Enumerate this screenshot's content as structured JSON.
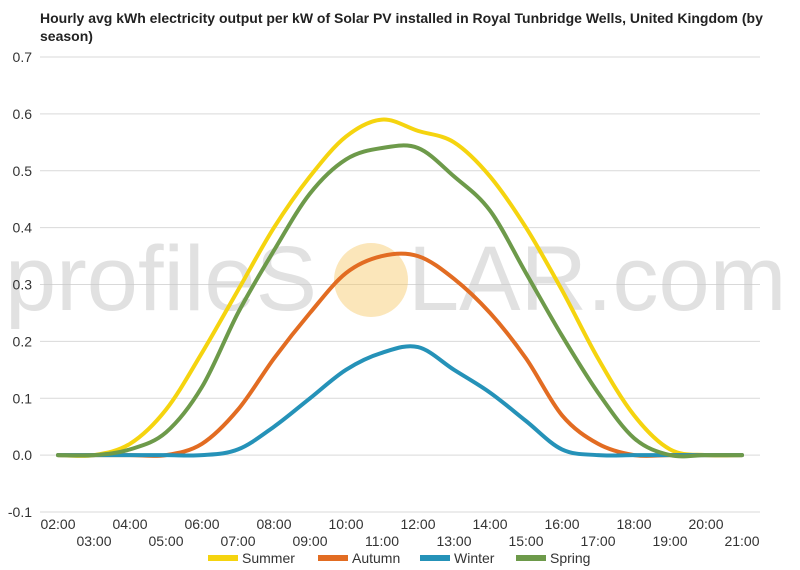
{
  "chart_data": {
    "type": "line",
    "title": "Hourly avg kWh electricity output per kW of Solar PV installed in Royal Tunbridge Wells, United Kingdom (by season)",
    "xlabel": "",
    "ylabel": "",
    "x_ticks_upper": [
      "02:00",
      "04:00",
      "06:00",
      "08:00",
      "10:00",
      "12:00",
      "14:00",
      "16:00",
      "18:00",
      "20:00"
    ],
    "x_ticks_lower": [
      "03:00",
      "05:00",
      "07:00",
      "09:00",
      "11:00",
      "13:00",
      "15:00",
      "17:00",
      "19:00",
      "21:00"
    ],
    "ylim": [
      -0.1,
      0.7
    ],
    "yticks": [
      "-0.1",
      "0.0",
      "0.1",
      "0.2",
      "0.3",
      "0.4",
      "0.5",
      "0.6",
      "0.7"
    ],
    "grid": true,
    "legend_position": "bottom",
    "x": [
      "02:00",
      "03:00",
      "04:00",
      "05:00",
      "06:00",
      "07:00",
      "08:00",
      "09:00",
      "10:00",
      "11:00",
      "12:00",
      "13:00",
      "14:00",
      "15:00",
      "16:00",
      "17:00",
      "18:00",
      "19:00",
      "20:00",
      "21:00"
    ],
    "series": [
      {
        "name": "Summer",
        "color": "#f5d40f",
        "values": [
          0.0,
          0.0,
          0.02,
          0.08,
          0.18,
          0.29,
          0.4,
          0.49,
          0.56,
          0.59,
          0.57,
          0.55,
          0.49,
          0.4,
          0.29,
          0.17,
          0.07,
          0.01,
          0.0,
          0.0
        ]
      },
      {
        "name": "Autumn",
        "color": "#e26c22",
        "values": [
          0.0,
          0.0,
          0.0,
          0.0,
          0.02,
          0.08,
          0.17,
          0.25,
          0.32,
          0.35,
          0.35,
          0.31,
          0.25,
          0.17,
          0.07,
          0.02,
          0.0,
          0.0,
          0.0,
          0.0
        ]
      },
      {
        "name": "Winter",
        "color": "#2592b8",
        "values": [
          0.0,
          0.0,
          0.0,
          0.0,
          0.0,
          0.01,
          0.05,
          0.1,
          0.15,
          0.18,
          0.19,
          0.15,
          0.11,
          0.06,
          0.01,
          0.0,
          0.0,
          0.0,
          0.0,
          0.0
        ]
      },
      {
        "name": "Spring",
        "color": "#6d9a4a",
        "values": [
          0.0,
          0.0,
          0.01,
          0.04,
          0.12,
          0.25,
          0.36,
          0.46,
          0.52,
          0.54,
          0.54,
          0.49,
          0.43,
          0.32,
          0.21,
          0.11,
          0.03,
          0.0,
          0.0,
          0.0
        ]
      }
    ]
  },
  "watermark": {
    "text_left": "profileS",
    "text_right": "LAR.com",
    "sun_color": "#f7c766"
  }
}
